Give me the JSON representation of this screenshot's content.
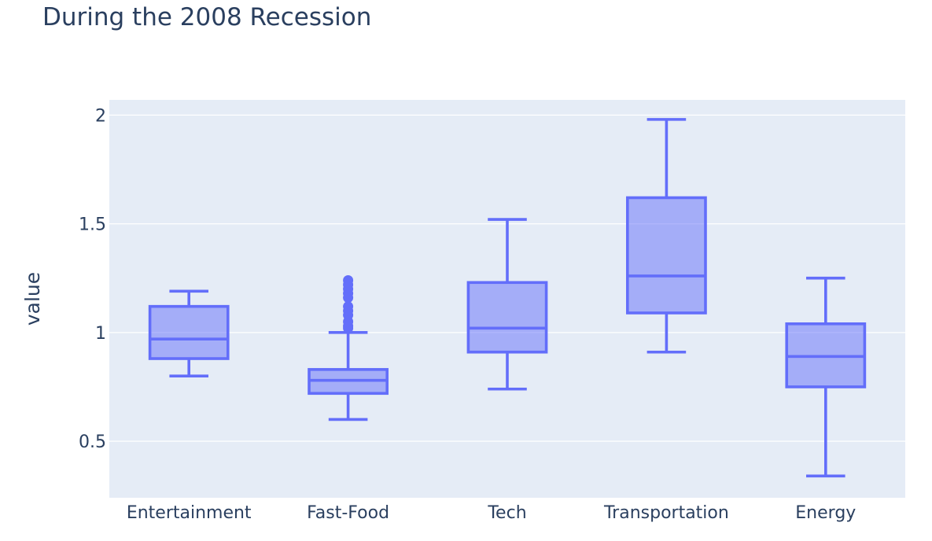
{
  "chart_data": {
    "type": "box",
    "title": "During the 2008 Recession",
    "xlabel": "",
    "ylabel": "value",
    "ylim": [
      0.24,
      2.07
    ],
    "yticks": [
      0.5,
      1,
      1.5,
      2
    ],
    "ytick_labels": [
      "0.5",
      "1",
      "1.5",
      "2"
    ],
    "grid": true,
    "colors": {
      "plot_bg": "#e5ecf6",
      "box_line": "#636efa",
      "box_fill": "rgba(99,110,250,0.5)",
      "grid": "#ffffff",
      "text": "#2a3f5f"
    },
    "categories": [
      "Entertainment",
      "Fast-Food",
      "Tech",
      "Transportation",
      "Energy"
    ],
    "boxes": [
      {
        "category": "Entertainment",
        "lower_fence": 0.8,
        "q1": 0.88,
        "median": 0.97,
        "q3": 1.12,
        "upper_fence": 1.19,
        "outliers": []
      },
      {
        "category": "Fast-Food",
        "lower_fence": 0.6,
        "q1": 0.72,
        "median": 0.78,
        "q3": 0.83,
        "upper_fence": 1.0,
        "outliers": [
          1.02,
          1.03,
          1.05,
          1.08,
          1.1,
          1.12,
          1.16,
          1.18,
          1.2,
          1.22,
          1.24
        ]
      },
      {
        "category": "Tech",
        "lower_fence": 0.74,
        "q1": 0.91,
        "median": 1.02,
        "q3": 1.23,
        "upper_fence": 1.52,
        "outliers": []
      },
      {
        "category": "Transportation",
        "lower_fence": 0.91,
        "q1": 1.09,
        "median": 1.26,
        "q3": 1.62,
        "upper_fence": 1.98,
        "outliers": []
      },
      {
        "category": "Energy",
        "lower_fence": 0.34,
        "q1": 0.75,
        "median": 0.89,
        "q3": 1.04,
        "upper_fence": 1.25,
        "outliers": []
      }
    ]
  }
}
